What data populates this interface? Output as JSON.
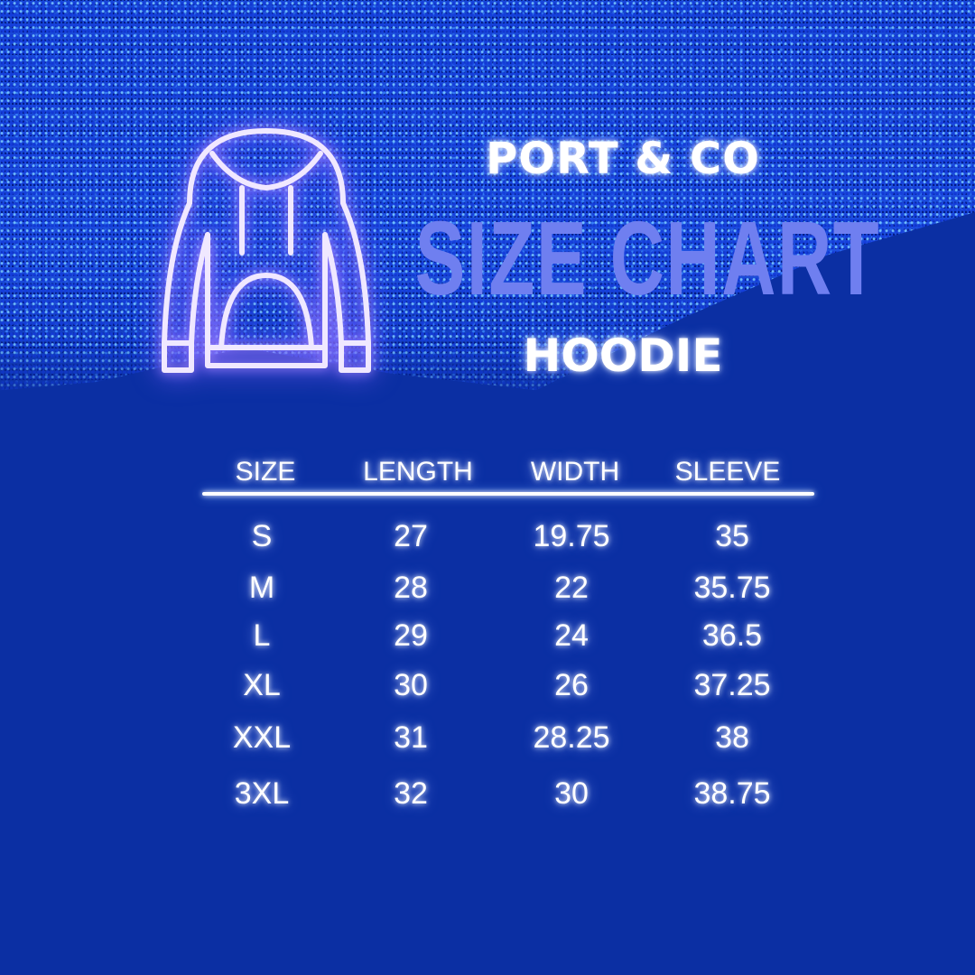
{
  "header": {
    "brand": "PORT & CO",
    "title": "SIZE CHART",
    "subtitle": "HOODIE"
  },
  "icon": "hoodie-icon",
  "colors": {
    "background": "#0b2fa3",
    "title": "#6f7ff0",
    "icon_glow": "#a78bff"
  },
  "table": {
    "columns": [
      "SIZE",
      "LENGTH",
      "WIDTH",
      "SLEEVE"
    ],
    "rows": [
      [
        "S",
        "27",
        "19.75",
        "35"
      ],
      [
        "M",
        "28",
        "22",
        "35.75"
      ],
      [
        "L",
        "29",
        "24",
        "36.5"
      ],
      [
        "XL",
        "30",
        "26",
        "37.25"
      ],
      [
        "XXL",
        "31",
        "28.25",
        "38"
      ],
      [
        "3XL",
        "32",
        "30",
        "38.75"
      ]
    ]
  }
}
